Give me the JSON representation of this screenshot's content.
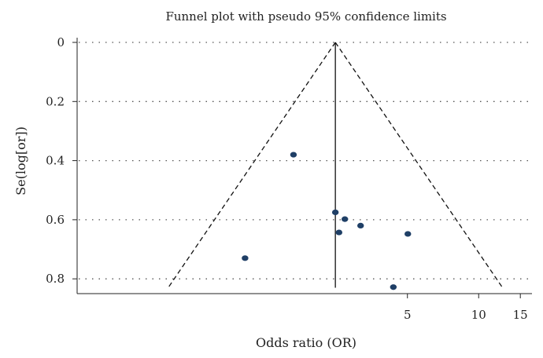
{
  "chart_data": {
    "type": "scatter",
    "title": "Funnel plot with pseudo 95% confidence limits",
    "xlabel": "Odds ratio (OR)",
    "ylabel": "Se(log[or])",
    "x_scale": "log",
    "xlim": [
      0.201,
      16.8
    ],
    "ylim": [
      0,
      0.85
    ],
    "y_reversed": true,
    "x_ticks": [
      {
        "value": 5,
        "label": "5"
      },
      {
        "value": 10,
        "label": "10"
      },
      {
        "value": 15,
        "label": "15"
      }
    ],
    "y_ticks": [
      {
        "value": 0,
        "label": "0"
      },
      {
        "value": 0.2,
        "label": "0.2"
      },
      {
        "value": 0.4,
        "label": "0.4"
      },
      {
        "value": 0.6,
        "label": "0.6"
      },
      {
        "value": 0.8,
        "label": "0.8"
      }
    ],
    "y_grid": true,
    "pooled_or": 2.48,
    "pseudo_ci_z": 1.96,
    "points": [
      {
        "or": 1.65,
        "se": 0.38
      },
      {
        "or": 2.48,
        "se": 0.575
      },
      {
        "or": 2.72,
        "se": 0.598
      },
      {
        "or": 2.57,
        "se": 0.643
      },
      {
        "or": 3.17,
        "se": 0.62
      },
      {
        "or": 5.02,
        "se": 0.648
      },
      {
        "or": 1.03,
        "se": 0.73
      },
      {
        "or": 4.36,
        "se": 0.828
      }
    ]
  }
}
